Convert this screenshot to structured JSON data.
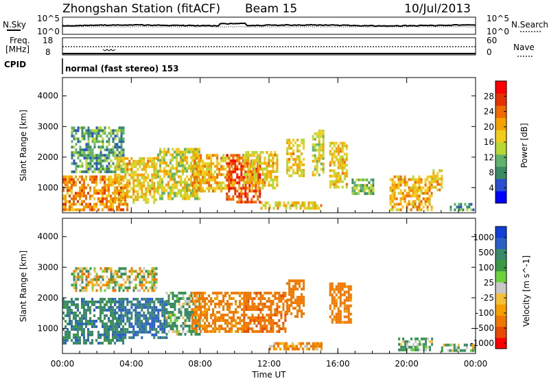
{
  "header": {
    "station": "Zhongshan Station (fitACF)",
    "beam": "Beam 15",
    "date": "10/Jul/2013"
  },
  "noise_panel": {
    "left_label": "N.Sky",
    "right_label": "N.Search",
    "left_ticks": [
      "10^5",
      "10^0"
    ],
    "right_ticks": [
      "10^5",
      "10^0"
    ]
  },
  "freq_panel": {
    "left_label_1": "Freq.",
    "left_label_2": "[MHz]",
    "right_label": "Nave",
    "left_ticks": [
      "18",
      "8"
    ],
    "right_ticks": [
      "60",
      "0"
    ]
  },
  "cpid": {
    "label": "CPID",
    "text": "normal (fast stereo) 153"
  },
  "x_axis": {
    "label": "Time UT",
    "ticks": [
      "00:00",
      "04:00",
      "08:00",
      "12:00",
      "16:00",
      "20:00",
      "00:00"
    ]
  },
  "colors": {
    "power_scale": [
      "#0000ff",
      "#2a4fd0",
      "#3a8a64",
      "#5fb36a",
      "#b7d832",
      "#f2cc1a",
      "#f5a200",
      "#ef6a00",
      "#e63200",
      "#ff0000"
    ],
    "velocity_scale": [
      "#ff0000",
      "#e84a00",
      "#f07800",
      "#f5a000",
      "#f5bf3a",
      "#c8c8c8",
      "#6dd13a",
      "#3a9a44",
      "#3a8a6a",
      "#2a5fc8",
      "#1040d8"
    ]
  },
  "chart_data": [
    {
      "type": "heatmap",
      "title": "Power",
      "xlabel": "Time UT",
      "ylabel": "Slant Range [km]",
      "x_ticks": [
        "00:00",
        "04:00",
        "08:00",
        "12:00",
        "16:00",
        "20:00",
        "00:00"
      ],
      "y_ticks": [
        1000,
        2000,
        3000,
        4000
      ],
      "ylim": [
        180,
        4600
      ],
      "colorbar": {
        "label": "Power [dB]",
        "ticks": [
          4,
          8,
          12,
          16,
          20,
          24,
          28
        ],
        "range": [
          0,
          32
        ]
      },
      "regions": [
        {
          "t": [
            0.0,
            3.8
          ],
          "r": [
            300,
            1400
          ],
          "v": 22
        },
        {
          "t": [
            0.5,
            3.5
          ],
          "r": [
            1500,
            3000
          ],
          "v": 10
        },
        {
          "t": [
            3.0,
            5.5
          ],
          "r": [
            500,
            2000
          ],
          "v": 18
        },
        {
          "t": [
            5.5,
            8.0
          ],
          "r": [
            600,
            2300
          ],
          "v": 16
        },
        {
          "t": [
            7.5,
            10.0
          ],
          "r": [
            900,
            2100
          ],
          "v": 20
        },
        {
          "t": [
            9.5,
            11.5
          ],
          "r": [
            500,
            2100
          ],
          "v": 26
        },
        {
          "t": [
            10.5,
            12.5
          ],
          "r": [
            1000,
            2200
          ],
          "v": 18
        },
        {
          "t": [
            11.5,
            15.0
          ],
          "r": [
            350,
            550
          ],
          "v": 18
        },
        {
          "t": [
            13.0,
            14.0
          ],
          "r": [
            1400,
            2600
          ],
          "v": 18
        },
        {
          "t": [
            14.5,
            15.2
          ],
          "r": [
            1400,
            2900
          ],
          "v": 16
        },
        {
          "t": [
            15.5,
            16.5
          ],
          "r": [
            1000,
            2500
          ],
          "v": 18
        },
        {
          "t": [
            16.8,
            18.0
          ],
          "r": [
            800,
            1300
          ],
          "v": 12
        },
        {
          "t": [
            19.0,
            21.5
          ],
          "r": [
            300,
            1400
          ],
          "v": 20
        },
        {
          "t": [
            21.5,
            22.0
          ],
          "r": [
            900,
            1600
          ],
          "v": 18
        },
        {
          "t": [
            22.5,
            24.0
          ],
          "r": [
            300,
            500
          ],
          "v": 10
        }
      ]
    },
    {
      "type": "heatmap",
      "title": "Velocity",
      "xlabel": "Time UT",
      "ylabel": "Slant Range [km]",
      "x_ticks": [
        "00:00",
        "04:00",
        "08:00",
        "12:00",
        "16:00",
        "20:00",
        "00:00"
      ],
      "y_ticks": [
        1000,
        2000,
        3000,
        4000
      ],
      "ylim": [
        180,
        4600
      ],
      "colorbar": {
        "label": "Velocity [m s^-1]",
        "ticks": [
          "1000",
          "500",
          "100",
          "25",
          "-25",
          "-100",
          "-500",
          "-1000"
        ]
      },
      "regions": [
        {
          "t": [
            0.0,
            3.5
          ],
          "r": [
            500,
            2000
          ],
          "v": 200
        },
        {
          "t": [
            0.5,
            5.5
          ],
          "r": [
            2200,
            3000
          ],
          "v": 0
        },
        {
          "t": [
            3.0,
            6.0
          ],
          "r": [
            700,
            2000
          ],
          "v": 300
        },
        {
          "t": [
            6.0,
            8.0
          ],
          "r": [
            800,
            2200
          ],
          "v": 100
        },
        {
          "t": [
            7.5,
            10.5
          ],
          "r": [
            900,
            2200
          ],
          "v": -200
        },
        {
          "t": [
            10.5,
            13.0
          ],
          "r": [
            900,
            2200
          ],
          "v": -400
        },
        {
          "t": [
            12.0,
            15.0
          ],
          "r": [
            350,
            550
          ],
          "v": -150
        },
        {
          "t": [
            13.0,
            14.0
          ],
          "r": [
            1400,
            2600
          ],
          "v": -300
        },
        {
          "t": [
            15.5,
            16.8
          ],
          "r": [
            1200,
            2500
          ],
          "v": -200
        },
        {
          "t": [
            19.5,
            21.5
          ],
          "r": [
            300,
            700
          ],
          "v": 100
        },
        {
          "t": [
            22.0,
            24.0
          ],
          "r": [
            300,
            500
          ],
          "v": 80
        }
      ]
    }
  ]
}
